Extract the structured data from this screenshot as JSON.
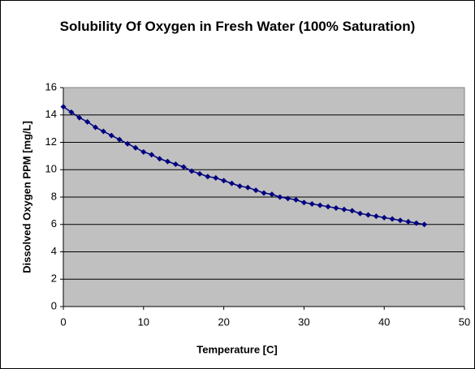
{
  "chart_data": {
    "type": "line",
    "title": "Solubility Of Oxygen in Fresh Water (100% Saturation)",
    "x_label": "Temperature [C]",
    "y_label": "Dissolved Oxygen PPM [mg/L]",
    "x": [
      0,
      1,
      2,
      3,
      4,
      5,
      6,
      7,
      8,
      9,
      10,
      11,
      12,
      13,
      14,
      15,
      16,
      17,
      18,
      19,
      20,
      21,
      22,
      23,
      24,
      25,
      26,
      27,
      28,
      29,
      30,
      31,
      32,
      33,
      34,
      35,
      36,
      37,
      38,
      39,
      40,
      41,
      42,
      43,
      44,
      45
    ],
    "series": [
      {
        "color": "#000080",
        "marker": "diamond",
        "values": [
          14.6,
          14.2,
          13.8,
          13.5,
          13.1,
          12.8,
          12.5,
          12.2,
          11.9,
          11.6,
          11.3,
          11.1,
          10.8,
          10.6,
          10.4,
          10.2,
          9.9,
          9.7,
          9.5,
          9.4,
          9.2,
          9.0,
          8.8,
          8.7,
          8.5,
          8.3,
          8.2,
          8.0,
          7.9,
          7.8,
          7.6,
          7.5,
          7.4,
          7.3,
          7.2,
          7.1,
          7.0,
          6.8,
          6.7,
          6.6,
          6.5,
          6.4,
          6.3,
          6.2,
          6.1,
          6.0
        ]
      }
    ],
    "xlim": [
      0,
      50
    ],
    "xticks": [
      0,
      10,
      20,
      30,
      40,
      50
    ],
    "ylim": [
      0,
      16
    ],
    "yticks": [
      0,
      2,
      4,
      6,
      8,
      10,
      12,
      14,
      16
    ],
    "grid": true,
    "plot_background": "#c0c0c0"
  }
}
